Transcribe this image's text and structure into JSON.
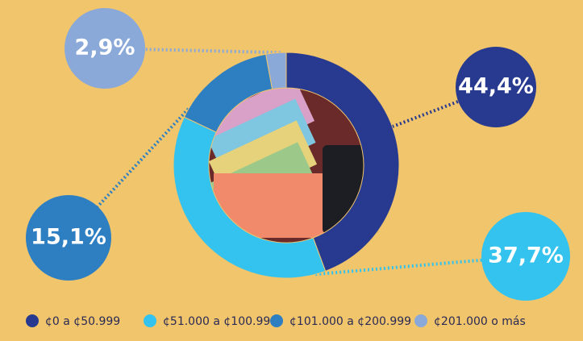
{
  "chart_data": {
    "type": "donut",
    "categories": [
      "¢0 a ¢50.999",
      "¢51.000 a ¢100.999",
      "¢101.000 a ¢200.999",
      "¢201.000 o más"
    ],
    "values": [
      44.4,
      37.7,
      15.1,
      2.9
    ],
    "value_labels": [
      "44,4%",
      "37,7%",
      "15,1%",
      "2,9%"
    ],
    "colors": [
      "#283a8f",
      "#33c3ee",
      "#2e7fc2",
      "#8aa8d8"
    ]
  }
}
